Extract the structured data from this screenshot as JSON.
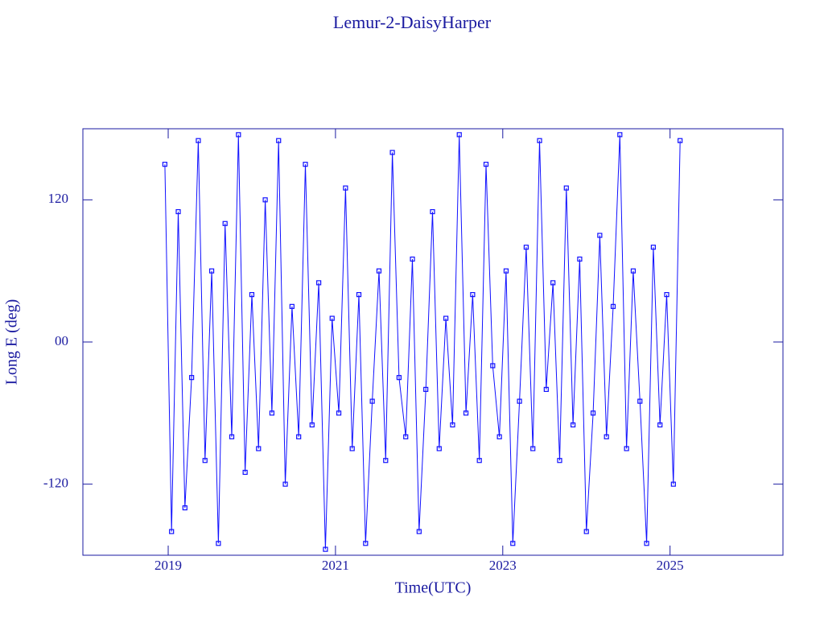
{
  "chart_data": {
    "type": "line",
    "title": "Lemur-2-DaisyHarper",
    "x_label": "Time(UTC)",
    "y_label": "Long E (deg)",
    "color": "#1010ff",
    "grid": false,
    "markers": "square",
    "xlim": [
      2017.98,
      2026.35
    ],
    "xticks": [
      2019,
      2021,
      2023,
      2025
    ],
    "ylim": [
      -180,
      180
    ],
    "yticks": [
      -120,
      {
        "value": 0,
        "label": "00"
      },
      120
    ],
    "x": [
      2018.96,
      2019.04,
      2019.12,
      2019.2,
      2019.28,
      2019.36,
      2019.44,
      2019.52,
      2019.6,
      2019.68,
      2019.76,
      2019.84,
      2019.92,
      2020.0,
      2020.08,
      2020.16,
      2020.24,
      2020.32,
      2020.4,
      2020.48,
      2020.56,
      2020.64,
      2020.72,
      2020.8,
      2020.88,
      2020.96,
      2021.04,
      2021.12,
      2021.2,
      2021.28,
      2021.36,
      2021.44,
      2021.52,
      2021.6,
      2021.68,
      2021.76,
      2021.84,
      2021.92,
      2022.0,
      2022.08,
      2022.16,
      2022.24,
      2022.32,
      2022.4,
      2022.48,
      2022.56,
      2022.64,
      2022.72,
      2022.8,
      2022.88,
      2022.96,
      2023.04,
      2023.12,
      2023.2,
      2023.28,
      2023.36,
      2023.44,
      2023.52,
      2023.6,
      2023.68,
      2023.76,
      2023.84,
      2023.92,
      2024.0,
      2024.08,
      2024.16,
      2024.24,
      2024.32,
      2024.4,
      2024.48,
      2024.56,
      2024.64,
      2024.72,
      2024.8,
      2024.88,
      2024.96,
      2025.04,
      2025.12
    ],
    "values": [
      150,
      -160,
      110,
      -140,
      -30,
      170,
      -100,
      60,
      -170,
      100,
      -80,
      175,
      -110,
      40,
      -90,
      120,
      -60,
      170,
      -120,
      30,
      -80,
      150,
      -70,
      50,
      -175,
      20,
      -60,
      130,
      -90,
      40,
      -170,
      -50,
      60,
      -100,
      160,
      -30,
      -80,
      70,
      -160,
      -40,
      110,
      -90,
      20,
      -70,
      175,
      -60,
      40,
      -100,
      150,
      -20,
      -80,
      60,
      -170,
      -50,
      80,
      -90,
      170,
      -40,
      50,
      -100,
      130,
      -70,
      70,
      -160,
      -60,
      90,
      -80,
      30,
      175,
      -90,
      60,
      -50,
      -170,
      80,
      -70,
      40,
      -120,
      170
    ]
  }
}
